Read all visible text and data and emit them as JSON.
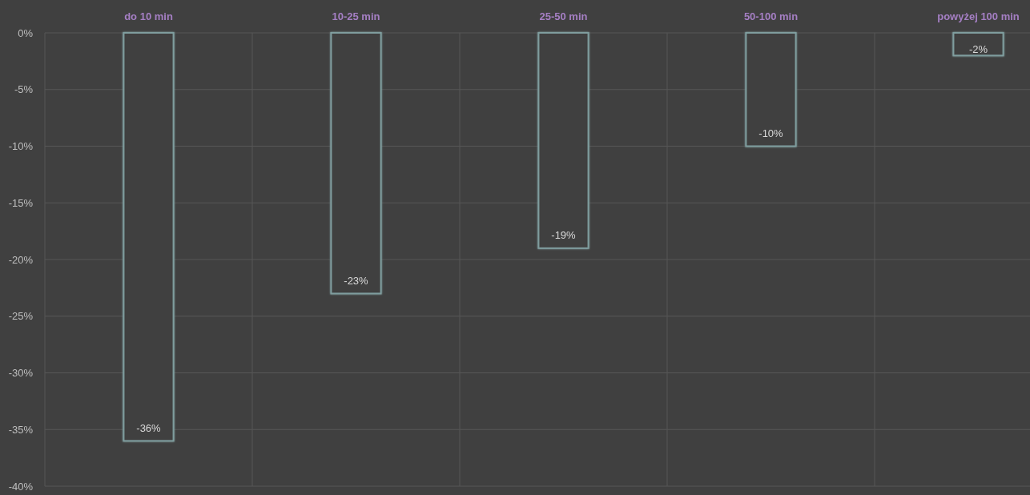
{
  "chart_data": {
    "type": "bar",
    "categories": [
      "do 10 min",
      "10-25 min",
      "25-50 min",
      "50-100 min",
      "powyżej 100 min"
    ],
    "values": [
      -36,
      -23,
      -19,
      -10,
      -2
    ],
    "color": "#7f9d9e",
    "value_labels": [
      "-36%",
      "-23%",
      "-19%",
      "-10%",
      "-2%"
    ],
    "ylim": [
      -40,
      0
    ],
    "yticks": [
      {
        "value": 0,
        "label": "0%"
      },
      {
        "value": -5,
        "label": "-5%"
      },
      {
        "value": -10,
        "label": "-10%"
      },
      {
        "value": -15,
        "label": "-15%"
      },
      {
        "value": -20,
        "label": "-20%"
      },
      {
        "value": -25,
        "label": "-25%"
      },
      {
        "value": -30,
        "label": "-30%"
      },
      {
        "value": -35,
        "label": "-35%"
      },
      {
        "value": -40,
        "label": "-40%"
      }
    ],
    "grid": true
  }
}
